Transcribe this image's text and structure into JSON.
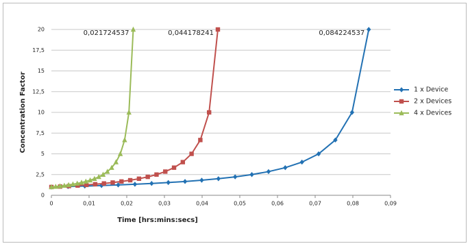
{
  "chart_data": {
    "type": "line",
    "xlabel": "Time   [hrs:mins:secs]",
    "ylabel": "Concentration Factor",
    "annotations": [
      "0,084224537",
      "0,044178241",
      "0,021724537"
    ],
    "legend": "right",
    "grid": true,
    "xlim": [
      0,
      0.09
    ],
    "xticks": [
      0,
      {
        "value": 0.01,
        "label": "0,01"
      },
      {
        "value": 0.02,
        "label": "0,02"
      },
      {
        "value": 0.03,
        "label": "0,03"
      },
      {
        "value": 0.04,
        "label": "0,04"
      },
      {
        "value": 0.05,
        "label": "0,05"
      },
      {
        "value": 0.06,
        "label": "0,06"
      },
      {
        "value": 0.07,
        "label": "0,07"
      },
      {
        "value": 0.08,
        "label": "0,08"
      },
      {
        "value": 0.09,
        "label": "0,09"
      }
    ],
    "ylim": [
      0,
      20
    ],
    "yticks": [
      0,
      {
        "value": 2.5,
        "label": "2,5"
      },
      5,
      {
        "value": 7.5,
        "label": "7,5"
      },
      10,
      {
        "value": 12.5,
        "label": "12,5"
      },
      15,
      {
        "value": 17.5,
        "label": "17,5"
      },
      20
    ],
    "series": [
      {
        "name": "1 x Device",
        "color": "#2271b3",
        "marker": "diamond",
        "x": [
          0,
          0.004433,
          0.008866,
          0.013299,
          0.017731,
          0.022164,
          0.026597,
          0.03103,
          0.035463,
          0.039896,
          0.044329,
          0.048762,
          0.053194,
          0.057627,
          0.06206,
          0.066493,
          0.070926,
          0.075359,
          0.079792,
          0.084225
        ],
        "values": [
          1,
          1.0526,
          1.1111,
          1.1765,
          1.25,
          1.3333,
          1.4286,
          1.5385,
          1.6667,
          1.8182,
          2,
          2.2222,
          2.5,
          2.8571,
          3.3333,
          4,
          5,
          6.6667,
          10,
          20
        ]
      },
      {
        "name": "2 x Devices",
        "color": "#c0504d",
        "marker": "square",
        "x": [
          0,
          0.002325,
          0.00465,
          0.006976,
          0.009301,
          0.011626,
          0.013951,
          0.016276,
          0.018601,
          0.020927,
          0.023252,
          0.025577,
          0.027902,
          0.030227,
          0.032552,
          0.034878,
          0.037203,
          0.039528,
          0.041853,
          0.044178
        ],
        "values": [
          1,
          1.0526,
          1.1111,
          1.1765,
          1.25,
          1.3333,
          1.4286,
          1.5385,
          1.6667,
          1.8182,
          2,
          2.2222,
          2.5,
          2.8571,
          3.3333,
          4,
          5,
          6.6667,
          10,
          20
        ]
      },
      {
        "name": "4 x Devices",
        "color": "#9bbb59",
        "marker": "triangle",
        "x": [
          0,
          0.001143,
          0.002287,
          0.00343,
          0.004574,
          0.005717,
          0.00686,
          0.008004,
          0.009147,
          0.010291,
          0.011434,
          0.012577,
          0.013721,
          0.014864,
          0.016008,
          0.017151,
          0.018294,
          0.019438,
          0.020581,
          0.021725
        ],
        "values": [
          1,
          1.0526,
          1.1111,
          1.1765,
          1.25,
          1.3333,
          1.4286,
          1.5385,
          1.6667,
          1.8182,
          2,
          2.2222,
          2.5,
          2.8571,
          3.3333,
          4,
          5,
          6.6667,
          10,
          20
        ]
      }
    ]
  }
}
